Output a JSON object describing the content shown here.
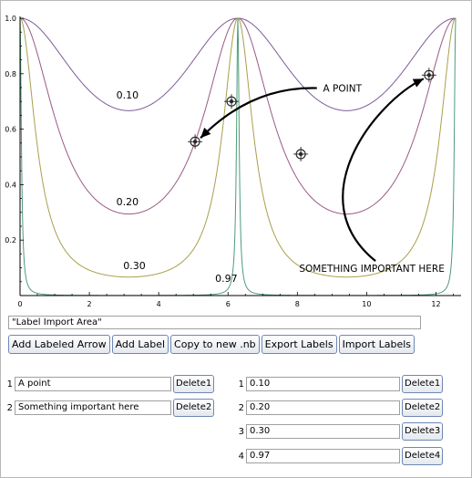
{
  "chart_data": {
    "type": "line",
    "xlim": [
      0,
      12.566
    ],
    "ylim": [
      0,
      1.0
    ],
    "x_ticks": [
      "0",
      "2",
      "4",
      "6",
      "8",
      "10",
      "12"
    ],
    "y_ticks": [
      "0.2",
      "0.4",
      "0.6",
      "0.8",
      "1.0"
    ],
    "grid": false,
    "series": [
      {
        "name": "0.10",
        "formula": "1/(1+k*sin(x/2)^2)",
        "k": 0.5,
        "color": "#7d5c98"
      },
      {
        "name": "0.20",
        "formula": "1/(1+k*sin(x/2)^2)",
        "k": 2.4,
        "color": "#9a5a86"
      },
      {
        "name": "0.30",
        "formula": "1/(1+k*sin(x/2)^2)",
        "k": 14,
        "color": "#a8a04c"
      },
      {
        "name": "0.97",
        "formula": "1/(1+k*sin(x/2)^2)",
        "k": 2000,
        "color": "#4e9b7a"
      }
    ],
    "series_labels": [
      {
        "text": "0.10",
        "x": 3.1,
        "y": 0.71
      },
      {
        "text": "0.20",
        "x": 3.1,
        "y": 0.325
      },
      {
        "text": "0.30",
        "x": 3.3,
        "y": 0.095
      },
      {
        "text": "0.97",
        "x": 5.95,
        "y": 0.05
      }
    ],
    "points": [
      {
        "x": 6.1,
        "y": 0.7
      },
      {
        "x": 5.05,
        "y": 0.555
      },
      {
        "x": 8.1,
        "y": 0.51
      },
      {
        "x": 11.8,
        "y": 0.795
      }
    ],
    "annotations": [
      {
        "text": "A POINT",
        "x": 9.3,
        "y": 0.735
      },
      {
        "text": "SOMETHING IMPORTANT HERE",
        "x": 10.15,
        "y": 0.085
      }
    ]
  },
  "import_area": {
    "value": "\"Label Import Area\""
  },
  "buttons": {
    "add_labeled_arrow": "Add Labeled Arrow",
    "add_label": "Add Label",
    "copy_to_nb": "Copy to new .nb",
    "export_labels": "Export Labels",
    "import_labels": "Import Labels"
  },
  "left_list": [
    {
      "index": "1",
      "value": "A point",
      "delete": "Delete1"
    },
    {
      "index": "2",
      "value": "Something important here",
      "delete": "Delete2"
    }
  ],
  "right_list": [
    {
      "index": "1",
      "value": "0.10",
      "delete": "Delete1"
    },
    {
      "index": "2",
      "value": "0.20",
      "delete": "Delete2"
    },
    {
      "index": "3",
      "value": "0.30",
      "delete": "Delete3"
    },
    {
      "index": "4",
      "value": "0.97",
      "delete": "Delete4"
    }
  ],
  "colors": {
    "arrow": "#000000",
    "axis": "#000000"
  }
}
